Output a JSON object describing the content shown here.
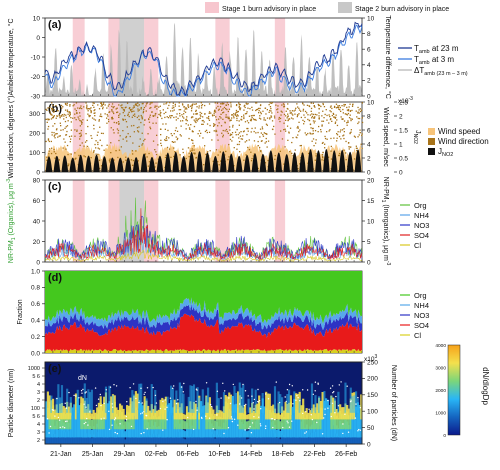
{
  "figure": {
    "legend_top": {
      "stage1": {
        "label": "Stage 1 burn advisory in place",
        "color": "#f7c6ce"
      },
      "stage2": {
        "label": "Stage 2 burn advisory in place",
        "color": "#c8c8c8"
      }
    }
  },
  "chart_data": [
    {
      "type": "line",
      "panel_label": "(a)",
      "ylabel": "Ambient temperature, °C",
      "ylabel2": "Temperature difference, °C",
      "ylim": [
        -30,
        10
      ],
      "yticks": [
        -30,
        -20,
        -10,
        0,
        10
      ],
      "ylim2": [
        0,
        10
      ],
      "yticks2": [
        0,
        2,
        4,
        6,
        8,
        10
      ],
      "xlim_days": [
        0,
        40
      ],
      "series": [
        {
          "name": "T_amb at 23 m",
          "color": "#1f3a93",
          "axis": "left",
          "x": [
            0,
            1,
            2,
            3,
            4,
            5,
            6,
            7,
            8,
            9,
            10,
            11,
            12,
            13,
            14,
            15,
            16,
            17,
            18,
            19,
            20,
            21,
            22,
            23,
            24,
            25,
            26,
            27,
            28,
            29,
            30,
            31,
            32,
            33,
            34,
            35,
            36,
            37,
            38,
            39,
            40
          ],
          "y": [
            -18,
            -22,
            -15,
            -10,
            -8,
            -5,
            -5,
            -10,
            -20,
            -26,
            -22,
            -15,
            -10,
            -7,
            -10,
            -20,
            -25,
            -28,
            -26,
            -22,
            -18,
            -14,
            -12,
            -15,
            -20,
            -24,
            -26,
            -22,
            -18,
            -15,
            -18,
            -22,
            -24,
            -22,
            -16,
            -12,
            -10,
            -5,
            2,
            5,
            8
          ]
        },
        {
          "name": "T_amb at 3 m",
          "color": "#3b7de0",
          "axis": "left",
          "x": [
            0,
            1,
            2,
            3,
            4,
            5,
            6,
            7,
            8,
            9,
            10,
            11,
            12,
            13,
            14,
            15,
            16,
            17,
            18,
            19,
            20,
            21,
            22,
            23,
            24,
            25,
            26,
            27,
            28,
            29,
            30,
            31,
            32,
            33,
            34,
            35,
            36,
            37,
            38,
            39,
            40
          ],
          "y": [
            -20,
            -25,
            -17,
            -12,
            -9,
            -6,
            -6,
            -12,
            -24,
            -30,
            -25,
            -17,
            -11,
            -8,
            -11,
            -23,
            -28,
            -30,
            -28,
            -24,
            -20,
            -16,
            -14,
            -17,
            -23,
            -27,
            -29,
            -24,
            -20,
            -17,
            -21,
            -25,
            -27,
            -24,
            -18,
            -14,
            -12,
            -7,
            0,
            3,
            6
          ]
        },
        {
          "name": "ΔT_amb (23 m – 3 m)",
          "color": "#b8b8b8",
          "axis": "right",
          "style": "area",
          "x": [
            0,
            1,
            2,
            3,
            4,
            5,
            6,
            7,
            8,
            9,
            10,
            11,
            12,
            13,
            14,
            15,
            16,
            17,
            18,
            19,
            20,
            21,
            22,
            23,
            24,
            25,
            26,
            27,
            28,
            29,
            30,
            31,
            32,
            33,
            34,
            35,
            36,
            37,
            38,
            39,
            40
          ],
          "y": [
            3,
            6,
            2,
            4,
            2,
            1,
            3,
            5,
            6,
            8,
            7,
            4,
            2,
            3,
            2,
            5,
            9,
            6,
            7,
            5,
            3,
            4,
            6,
            5,
            7,
            6,
            8,
            5,
            4,
            3,
            6,
            5,
            7,
            5,
            4,
            3,
            5,
            6,
            4,
            7,
            5
          ]
        }
      ],
      "legend_text": [
        "T",
        "amb",
        " at 23 m",
        " at 3 m",
        "ΔT",
        "amb (23 m – 3 m)"
      ]
    },
    {
      "type": "scatter",
      "panel_label": "(b)",
      "ylabel": "Wind direction, degrees (°)",
      "ylabel2": "Wind speed, m/sec",
      "ylabel3": "J",
      "ylabel3_sub": "NO2",
      "ylim": [
        0,
        360
      ],
      "yticks": [
        0,
        100,
        200,
        300
      ],
      "ylim2": [
        0,
        10
      ],
      "yticks2": [
        0,
        2,
        4,
        6,
        8,
        10
      ],
      "ylim3": [
        0,
        2.5
      ],
      "yticks3": [
        0,
        0.5,
        1.0,
        1.5,
        2.0,
        2.5
      ],
      "y3_exponent": "x10",
      "y3_exponent_power": "-3",
      "series": [
        {
          "name": "Wind speed",
          "color": "#f7c47a"
        },
        {
          "name": "Wind direction",
          "color": "#a8741a"
        },
        {
          "name": "J",
          "name_sub": "NO2",
          "color": "#111111"
        }
      ]
    },
    {
      "type": "line",
      "panel_label": "(c)",
      "ylabel": "NR-PM",
      "ylabel_sub": "1",
      "ylabel_tail": " (Organics), μg m",
      "ylabel_sup": "-3",
      "ylabel2": "NR-PM",
      "ylabel2_sub": "1",
      "ylabel2_tail": " (Inorganics), μg m",
      "ylabel2_sup": "-3",
      "ylim": [
        0,
        80
      ],
      "yticks": [
        0,
        20,
        40,
        60,
        80
      ],
      "ylim2": [
        0,
        20
      ],
      "yticks2": [
        0,
        5,
        10,
        15,
        20
      ],
      "series": [
        {
          "name": "Org",
          "color": "#5ec23a"
        },
        {
          "name": "NH4",
          "color": "#5aa3e8"
        },
        {
          "name": "NO3",
          "color": "#2b35c8"
        },
        {
          "name": "SO4",
          "color": "#e02020"
        },
        {
          "name": "Cl",
          "color": "#d8c820"
        }
      ]
    },
    {
      "type": "area",
      "panel_label": "(d)",
      "ylabel": "Fraction",
      "ylim": [
        0,
        1.0
      ],
      "yticks": [
        "0.0",
        "0.2",
        "0.4",
        "0.6",
        "0.8",
        "1.0"
      ],
      "series": [
        {
          "name": "Org",
          "color": "#44c81e"
        },
        {
          "name": "NH4",
          "color": "#58a8ea"
        },
        {
          "name": "NO3",
          "color": "#2d33c4"
        },
        {
          "name": "SO4",
          "color": "#e81a1a"
        },
        {
          "name": "Cl",
          "color": "#d8d020"
        }
      ]
    },
    {
      "type": "heatmap",
      "panel_label": "(e)",
      "ylabel": "Particle diameter (nm)",
      "ylabel2": "Number of particles (dN)",
      "y2_exponent": "x10",
      "y2_exponent_power": "3",
      "ylim2": [
        0,
        250
      ],
      "yticks2": [
        0,
        50,
        100,
        150,
        200,
        250
      ],
      "yticks": [
        "2",
        "3",
        "4",
        "5 6",
        "100",
        "2",
        "3",
        "4",
        "5 6",
        "1000"
      ],
      "series_label": "dN",
      "colorbar": {
        "label": "dN/dlogDp",
        "ticks": [
          0,
          1000,
          2000,
          3000,
          4000
        ],
        "colors": [
          "#0b1a8c",
          "#1565c0",
          "#29b6f6",
          "#7cd67a",
          "#f4e04d",
          "#f6a21a"
        ]
      },
      "x_tick_labels": [
        "21-Jan",
        "25-Jan",
        "29-Jan",
        "02-Feb",
        "06-Feb",
        "10-Feb",
        "14-Feb",
        "18-Feb",
        "22-Feb",
        "26-Feb"
      ],
      "x_tick_days": [
        2,
        6,
        10,
        14,
        18,
        22,
        26,
        30,
        34,
        38
      ]
    }
  ],
  "advisories": {
    "stage1_days": [
      [
        3.5,
        5
      ],
      [
        8,
        9.4
      ],
      [
        12.5,
        14.3
      ],
      [
        21.5,
        23.3
      ],
      [
        29,
        30.3
      ]
    ],
    "stage2_days": [
      [
        9.4,
        12.5
      ]
    ]
  }
}
